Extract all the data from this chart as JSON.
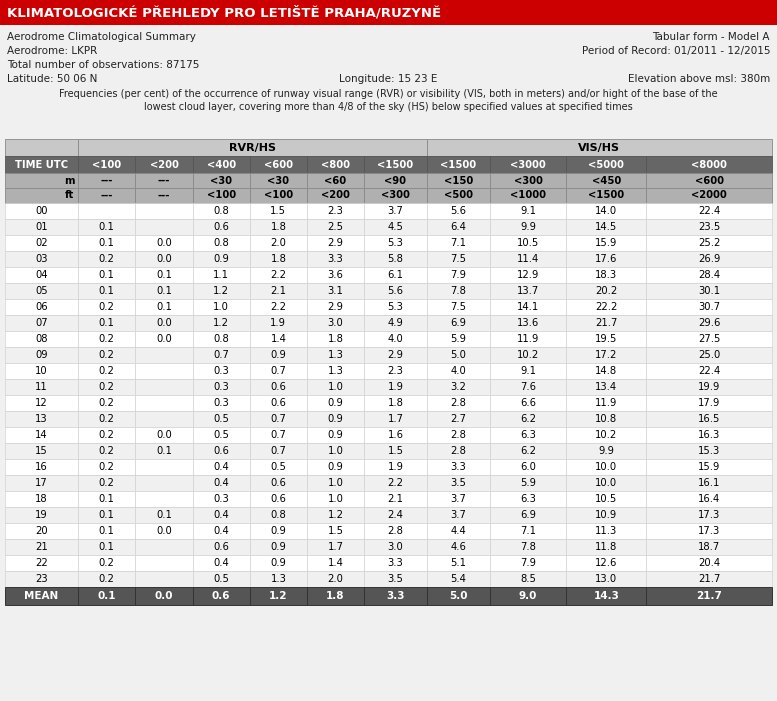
{
  "title": "KLIMATOLOGICKÉ PŘEHLEDY PRO LETIŠTĚ PRAHA/RUZYNĚ",
  "line1_left": "Aerodrome Climatological Summary",
  "line1_right": "Tabular form - Model A",
  "line2_left": "Aerodrome: LKPR",
  "line2_right": "Period of Record: 01/2011 - 12/2015",
  "line3_left": "Total number of observations: 87175",
  "line4_left": "Latitude: 50 06 N",
  "line4_mid": "Longitude: 15 23 E",
  "line4_right": "Elevation above msl: 380m",
  "freq_text1": "Frequencies (per cent) of the occurrence of runway visual range (RVR) or visibility (VIS, both in meters) and/or hight of the base of the",
  "freq_text2": "lowest cloud layer, covering more than 4/8 of the sky (HS) below specified values at specified times",
  "col_headers": [
    "TIME UTC",
    "<100",
    "<200",
    "<400",
    "<600",
    "<800",
    "<1500",
    "<1500",
    "<3000",
    "<5000",
    "<8000"
  ],
  "row_m": [
    "m",
    "---",
    "---",
    "<30",
    "<30",
    "<60",
    "<90",
    "<150",
    "<300",
    "<450",
    "<600"
  ],
  "row_ft": [
    "ft",
    "---",
    "---",
    "<100",
    "<100",
    "<200",
    "<300",
    "<500",
    "<1000",
    "<1500",
    "<2000"
  ],
  "rows": [
    [
      "00",
      "",
      "",
      "0.8",
      "1.5",
      "2.3",
      "3.7",
      "5.6",
      "9.1",
      "14.0",
      "22.4"
    ],
    [
      "01",
      "0.1",
      "",
      "0.6",
      "1.8",
      "2.5",
      "4.5",
      "6.4",
      "9.9",
      "14.5",
      "23.5"
    ],
    [
      "02",
      "0.1",
      "0.0",
      "0.8",
      "2.0",
      "2.9",
      "5.3",
      "7.1",
      "10.5",
      "15.9",
      "25.2"
    ],
    [
      "03",
      "0.2",
      "0.0",
      "0.9",
      "1.8",
      "3.3",
      "5.8",
      "7.5",
      "11.4",
      "17.6",
      "26.9"
    ],
    [
      "04",
      "0.1",
      "0.1",
      "1.1",
      "2.2",
      "3.6",
      "6.1",
      "7.9",
      "12.9",
      "18.3",
      "28.4"
    ],
    [
      "05",
      "0.1",
      "0.1",
      "1.2",
      "2.1",
      "3.1",
      "5.6",
      "7.8",
      "13.7",
      "20.2",
      "30.1"
    ],
    [
      "06",
      "0.2",
      "0.1",
      "1.0",
      "2.2",
      "2.9",
      "5.3",
      "7.5",
      "14.1",
      "22.2",
      "30.7"
    ],
    [
      "07",
      "0.1",
      "0.0",
      "1.2",
      "1.9",
      "3.0",
      "4.9",
      "6.9",
      "13.6",
      "21.7",
      "29.6"
    ],
    [
      "08",
      "0.2",
      "0.0",
      "0.8",
      "1.4",
      "1.8",
      "4.0",
      "5.9",
      "11.9",
      "19.5",
      "27.5"
    ],
    [
      "09",
      "0.2",
      "",
      "0.7",
      "0.9",
      "1.3",
      "2.9",
      "5.0",
      "10.2",
      "17.2",
      "25.0"
    ],
    [
      "10",
      "0.2",
      "",
      "0.3",
      "0.7",
      "1.3",
      "2.3",
      "4.0",
      "9.1",
      "14.8",
      "22.4"
    ],
    [
      "11",
      "0.2",
      "",
      "0.3",
      "0.6",
      "1.0",
      "1.9",
      "3.2",
      "7.6",
      "13.4",
      "19.9"
    ],
    [
      "12",
      "0.2",
      "",
      "0.3",
      "0.6",
      "0.9",
      "1.8",
      "2.8",
      "6.6",
      "11.9",
      "17.9"
    ],
    [
      "13",
      "0.2",
      "",
      "0.5",
      "0.7",
      "0.9",
      "1.7",
      "2.7",
      "6.2",
      "10.8",
      "16.5"
    ],
    [
      "14",
      "0.2",
      "0.0",
      "0.5",
      "0.7",
      "0.9",
      "1.6",
      "2.8",
      "6.3",
      "10.2",
      "16.3"
    ],
    [
      "15",
      "0.2",
      "0.1",
      "0.6",
      "0.7",
      "1.0",
      "1.5",
      "2.8",
      "6.2",
      "9.9",
      "15.3"
    ],
    [
      "16",
      "0.2",
      "",
      "0.4",
      "0.5",
      "0.9",
      "1.9",
      "3.3",
      "6.0",
      "10.0",
      "15.9"
    ],
    [
      "17",
      "0.2",
      "",
      "0.4",
      "0.6",
      "1.0",
      "2.2",
      "3.5",
      "5.9",
      "10.0",
      "16.1"
    ],
    [
      "18",
      "0.1",
      "",
      "0.3",
      "0.6",
      "1.0",
      "2.1",
      "3.7",
      "6.3",
      "10.5",
      "16.4"
    ],
    [
      "19",
      "0.1",
      "0.1",
      "0.4",
      "0.8",
      "1.2",
      "2.4",
      "3.7",
      "6.9",
      "10.9",
      "17.3"
    ],
    [
      "20",
      "0.1",
      "0.0",
      "0.4",
      "0.9",
      "1.5",
      "2.8",
      "4.4",
      "7.1",
      "11.3",
      "17.3"
    ],
    [
      "21",
      "0.1",
      "",
      "0.6",
      "0.9",
      "1.7",
      "3.0",
      "4.6",
      "7.8",
      "11.8",
      "18.7"
    ],
    [
      "22",
      "0.2",
      "",
      "0.4",
      "0.9",
      "1.4",
      "3.3",
      "5.1",
      "7.9",
      "12.6",
      "20.4"
    ],
    [
      "23",
      "0.2",
      "",
      "0.5",
      "1.3",
      "2.0",
      "3.5",
      "5.4",
      "8.5",
      "13.0",
      "21.7"
    ]
  ],
  "mean_row": [
    "MEAN",
    "0.1",
    "0.0",
    "0.6",
    "1.2",
    "1.8",
    "3.3",
    "5.0",
    "9.0",
    "14.3",
    "21.7"
  ],
  "title_bg": "#cc0000",
  "title_color": "#ffffff",
  "dark_header_bg": "#666666",
  "dark_header_fg": "#ffffff",
  "mid_header_bg": "#b0b0b0",
  "mid_header_fg": "#000000",
  "group_header_bg": "#c8c8c8",
  "mean_bg": "#555555",
  "mean_fg": "#ffffff",
  "row_bg_even": "#f0f0f0",
  "row_bg_odd": "#ffffff",
  "border_color": "#aaaaaa"
}
